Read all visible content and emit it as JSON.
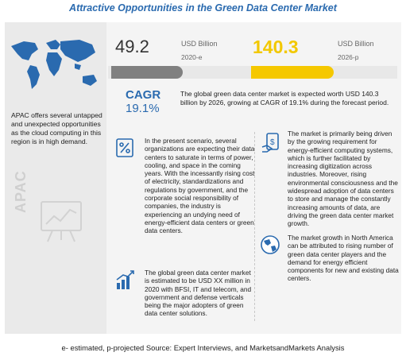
{
  "title": "Attractive Opportunities in the Green Data Center Market",
  "stats": {
    "value_2020": "49.2",
    "unit_2020": "USD Billion",
    "year_2020": "2020-e",
    "value_2026": "140.3",
    "unit_2026": "USD Billion",
    "year_2026": "2026-p",
    "cagr_label": "CAGR",
    "cagr_value": "19.1%",
    "colors": {
      "estimate_bar": "#808080",
      "projection_bar": "#f5c800",
      "accent": "#2a6aaf"
    }
  },
  "market_desc": "The global green data center market is expected worth USD 140.3 billion by 2026, growing at CAGR of 19.1% during the forecast period.",
  "apac": {
    "text": "APAC offers several untapped and unexpected opportunities as the cloud computing in this region is in high demand.",
    "vertical_label": "APAC"
  },
  "insights": [
    {
      "icon": "percent-chart-icon",
      "text": "In the present scenario, several organizations are expecting their data centers to saturate in terms of power, cooling, and space in the coming years. With the incessantly rising cost of electricity, standardizations and regulations by government, and the corporate social responsibility of companies, the industry is experiencing an undying need of energy-efficient data centers or green data centers."
    },
    {
      "icon": "money-hand-icon",
      "text": "The market is primarily being driven by the growing requirement for energy-efficient computing systems, which is further facilitated by increasing digitization across industries. Moreover, rising environmental consciousness and the widespread adoption of data centers to store and manage the constantly increasing amounts of data, are driving the green data center market growth."
    },
    {
      "icon": "growth-chart-icon",
      "text": "The global green data center market is estimated to be USD XX million in 2020 with BFSI, IT and telecom, and government and defense verticals being the major adopters of green data center solutions."
    },
    {
      "icon": "globe-icon",
      "text": "The market growth in North America can be attributed to rising number of green data center players and the demand for energy efficient components for new and existing data centers."
    }
  ],
  "footer": "e- estimated, p-projected Source: Expert Interviews, and MarketsandMarkets Analysis"
}
